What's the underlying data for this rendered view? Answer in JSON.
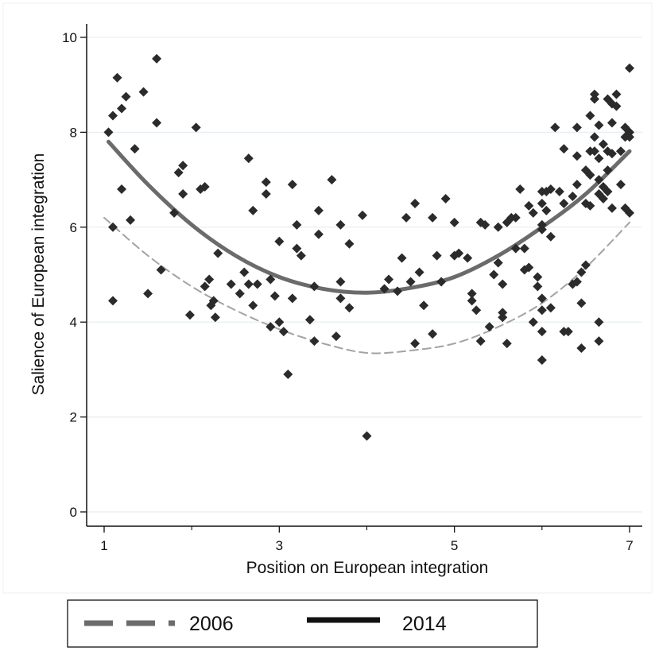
{
  "chart_data": {
    "type": "scatter",
    "xlabel": "Position on European integration",
    "ylabel": "Salience of European integration",
    "xlim": [
      1,
      7
    ],
    "ylim": [
      0,
      10
    ],
    "x_ticks": [
      "1",
      "3",
      "5",
      "7"
    ],
    "x_minor_ticks": [
      2,
      4,
      6
    ],
    "y_ticks": [
      "0",
      "2",
      "4",
      "6",
      "8",
      "10"
    ],
    "grid": "horizontal",
    "colors": {
      "points": "#2b2b2b",
      "fit_2014": "#6b6b6b",
      "fit_2006": "#a3a3a3",
      "legend_2006": "#6b6b6b",
      "legend_2014": "#111111",
      "grid": "#e6eef4"
    },
    "series": [
      {
        "name": "2006",
        "kind": "quadratic-fit",
        "style": "dashed",
        "x": [
          1.0,
          1.5,
          2.0,
          2.5,
          3.0,
          3.5,
          4.0,
          4.5,
          5.0,
          5.5,
          6.0,
          6.5,
          7.0
        ],
        "y": [
          6.2,
          5.4,
          4.75,
          4.25,
          3.85,
          3.55,
          3.35,
          3.4,
          3.55,
          3.9,
          4.4,
          5.15,
          6.1
        ]
      },
      {
        "name": "2014",
        "kind": "quadratic-fit",
        "style": "solid",
        "x": [
          1.05,
          1.5,
          2.0,
          2.5,
          3.0,
          3.5,
          4.0,
          4.5,
          5.0,
          5.5,
          6.0,
          6.5,
          7.0
        ],
        "y": [
          7.8,
          6.9,
          6.05,
          5.4,
          4.95,
          4.7,
          4.62,
          4.72,
          4.95,
          5.4,
          6.0,
          6.7,
          7.6
        ]
      }
    ],
    "points": [
      [
        1.05,
        8.0
      ],
      [
        1.1,
        8.35
      ],
      [
        1.1,
        6.0
      ],
      [
        1.1,
        4.45
      ],
      [
        1.15,
        9.15
      ],
      [
        1.2,
        8.5
      ],
      [
        1.2,
        6.8
      ],
      [
        1.25,
        8.75
      ],
      [
        1.3,
        6.15
      ],
      [
        1.35,
        7.65
      ],
      [
        1.45,
        8.85
      ],
      [
        1.5,
        4.6
      ],
      [
        1.6,
        9.55
      ],
      [
        1.6,
        8.2
      ],
      [
        1.65,
        5.1
      ],
      [
        1.8,
        6.3
      ],
      [
        1.85,
        7.15
      ],
      [
        1.9,
        7.3
      ],
      [
        1.9,
        6.7
      ],
      [
        1.98,
        4.15
      ],
      [
        2.05,
        8.1
      ],
      [
        2.1,
        6.8
      ],
      [
        2.15,
        6.85
      ],
      [
        2.15,
        4.75
      ],
      [
        2.2,
        4.9
      ],
      [
        2.22,
        4.35
      ],
      [
        2.25,
        4.45
      ],
      [
        2.27,
        4.1
      ],
      [
        2.3,
        5.45
      ],
      [
        2.45,
        4.8
      ],
      [
        2.55,
        4.6
      ],
      [
        2.6,
        5.05
      ],
      [
        2.65,
        7.45
      ],
      [
        2.65,
        4.8
      ],
      [
        2.7,
        6.35
      ],
      [
        2.7,
        4.35
      ],
      [
        2.75,
        4.8
      ],
      [
        2.85,
        6.95
      ],
      [
        2.85,
        6.7
      ],
      [
        2.9,
        4.9
      ],
      [
        2.9,
        3.9
      ],
      [
        2.95,
        4.55
      ],
      [
        3.0,
        5.7
      ],
      [
        3.0,
        4.0
      ],
      [
        3.05,
        3.8
      ],
      [
        3.1,
        2.9
      ],
      [
        3.15,
        6.9
      ],
      [
        3.15,
        4.5
      ],
      [
        3.2,
        6.05
      ],
      [
        3.2,
        5.55
      ],
      [
        3.25,
        5.4
      ],
      [
        3.35,
        4.05
      ],
      [
        3.4,
        4.75
      ],
      [
        3.4,
        3.6
      ],
      [
        3.45,
        6.35
      ],
      [
        3.45,
        5.85
      ],
      [
        3.6,
        7.0
      ],
      [
        3.65,
        3.7
      ],
      [
        3.7,
        6.05
      ],
      [
        3.7,
        4.85
      ],
      [
        3.7,
        4.5
      ],
      [
        3.8,
        5.65
      ],
      [
        3.8,
        4.3
      ],
      [
        3.95,
        6.25
      ],
      [
        4.0,
        1.6
      ],
      [
        4.2,
        4.7
      ],
      [
        4.25,
        4.9
      ],
      [
        4.35,
        4.65
      ],
      [
        4.4,
        5.35
      ],
      [
        4.45,
        6.2
      ],
      [
        4.5,
        4.85
      ],
      [
        4.55,
        6.5
      ],
      [
        4.55,
        3.55
      ],
      [
        4.6,
        5.05
      ],
      [
        4.65,
        4.35
      ],
      [
        4.75,
        6.2
      ],
      [
        4.75,
        3.75
      ],
      [
        4.8,
        5.4
      ],
      [
        4.85,
        4.85
      ],
      [
        4.9,
        6.6
      ],
      [
        5.0,
        6.1
      ],
      [
        5.0,
        5.4
      ],
      [
        5.05,
        5.45
      ],
      [
        5.15,
        5.35
      ],
      [
        5.2,
        4.6
      ],
      [
        5.2,
        4.45
      ],
      [
        5.25,
        4.25
      ],
      [
        5.3,
        6.1
      ],
      [
        5.3,
        3.6
      ],
      [
        5.35,
        6.05
      ],
      [
        5.4,
        3.9
      ],
      [
        5.45,
        5.0
      ],
      [
        5.5,
        6.0
      ],
      [
        5.5,
        5.25
      ],
      [
        5.55,
        4.8
      ],
      [
        5.55,
        4.2
      ],
      [
        5.55,
        4.1
      ],
      [
        5.6,
        6.1
      ],
      [
        5.6,
        3.55
      ],
      [
        5.65,
        6.2
      ],
      [
        5.7,
        6.2
      ],
      [
        5.7,
        5.55
      ],
      [
        5.75,
        6.8
      ],
      [
        5.8,
        5.55
      ],
      [
        5.8,
        5.1
      ],
      [
        5.85,
        6.45
      ],
      [
        5.85,
        5.15
      ],
      [
        5.9,
        6.3
      ],
      [
        5.9,
        4.0
      ],
      [
        5.95,
        4.75
      ],
      [
        5.95,
        4.95
      ],
      [
        6.0,
        6.75
      ],
      [
        6.0,
        6.5
      ],
      [
        6.0,
        6.05
      ],
      [
        6.0,
        5.95
      ],
      [
        6.0,
        4.5
      ],
      [
        6.0,
        4.25
      ],
      [
        6.0,
        3.8
      ],
      [
        6.0,
        3.2
      ],
      [
        6.05,
        6.75
      ],
      [
        6.05,
        6.35
      ],
      [
        6.1,
        6.8
      ],
      [
        6.1,
        5.8
      ],
      [
        6.1,
        4.3
      ],
      [
        6.15,
        8.1
      ],
      [
        6.2,
        6.75
      ],
      [
        6.25,
        7.65
      ],
      [
        6.25,
        6.5
      ],
      [
        6.25,
        3.8
      ],
      [
        6.3,
        3.8
      ],
      [
        6.35,
        6.65
      ],
      [
        6.35,
        4.8
      ],
      [
        6.4,
        8.1
      ],
      [
        6.4,
        7.5
      ],
      [
        6.4,
        6.9
      ],
      [
        6.4,
        4.85
      ],
      [
        6.45,
        5.05
      ],
      [
        6.45,
        4.4
      ],
      [
        6.45,
        3.45
      ],
      [
        6.5,
        7.2
      ],
      [
        6.5,
        6.5
      ],
      [
        6.5,
        5.2
      ],
      [
        6.55,
        8.35
      ],
      [
        6.55,
        7.6
      ],
      [
        6.55,
        7.1
      ],
      [
        6.55,
        6.45
      ],
      [
        6.6,
        8.8
      ],
      [
        6.6,
        8.7
      ],
      [
        6.6,
        7.9
      ],
      [
        6.6,
        7.6
      ],
      [
        6.65,
        8.15
      ],
      [
        6.65,
        7.45
      ],
      [
        6.65,
        7.0
      ],
      [
        6.65,
        6.7
      ],
      [
        6.65,
        4.0
      ],
      [
        6.65,
        3.6
      ],
      [
        6.7,
        7.75
      ],
      [
        6.7,
        6.85
      ],
      [
        6.7,
        6.6
      ],
      [
        6.75,
        8.7
      ],
      [
        6.75,
        7.6
      ],
      [
        6.75,
        7.2
      ],
      [
        6.75,
        6.75
      ],
      [
        6.8,
        8.6
      ],
      [
        6.8,
        8.2
      ],
      [
        6.8,
        7.55
      ],
      [
        6.8,
        6.4
      ],
      [
        6.85,
        8.8
      ],
      [
        6.85,
        8.55
      ],
      [
        6.9,
        7.6
      ],
      [
        6.9,
        6.9
      ],
      [
        6.95,
        8.1
      ],
      [
        6.95,
        7.9
      ],
      [
        6.95,
        6.4
      ],
      [
        7.0,
        9.35
      ],
      [
        7.0,
        8.0
      ],
      [
        7.0,
        7.9
      ],
      [
        7.0,
        6.3
      ]
    ],
    "legend": {
      "position": "bottom",
      "entries": [
        {
          "label": "2006",
          "style": "dashed"
        },
        {
          "label": "2014",
          "style": "solid"
        }
      ]
    }
  }
}
